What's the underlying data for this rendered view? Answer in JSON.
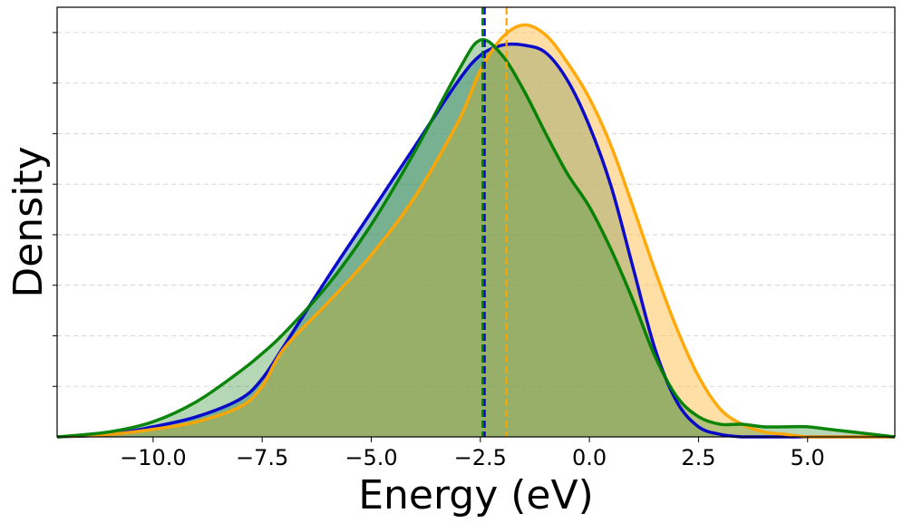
{
  "chart_data": {
    "type": "area",
    "title": "",
    "xlabel": "Energy (eV)",
    "ylabel": "Density",
    "xlim": [
      -12.2,
      7.0
    ],
    "ylim": [
      0,
      0.17
    ],
    "x_ticks": [
      -10.0,
      -7.5,
      -5.0,
      -2.5,
      0.0,
      2.5,
      5.0
    ],
    "x_tick_labels": [
      "−10.0",
      "−7.5",
      "−5.0",
      "−2.5",
      "0.0",
      "2.5",
      "5.0"
    ],
    "y_ticks": [
      0.02,
      0.04,
      0.06,
      0.08,
      0.1,
      0.12,
      0.14,
      0.16
    ],
    "grid": "horizontal dashed",
    "x": [
      -12.2,
      -11,
      -10,
      -9,
      -8,
      -7.5,
      -7,
      -6,
      -5,
      -4,
      -3,
      -2.5,
      -2,
      -1.5,
      -1,
      -0.5,
      0,
      0.5,
      1,
      1.5,
      2,
      2.5,
      3,
      3.5,
      4,
      4.5,
      5,
      5.5,
      6,
      7
    ],
    "series": [
      {
        "name": "blue",
        "color": "#0000cc",
        "fill": "#5f9ea0",
        "values": [
          0.0,
          0.001,
          0.004,
          0.008,
          0.015,
          0.023,
          0.036,
          0.063,
          0.089,
          0.115,
          0.141,
          0.151,
          0.155,
          0.155,
          0.152,
          0.141,
          0.123,
          0.099,
          0.067,
          0.035,
          0.014,
          0.004,
          0.001,
          0.0,
          0.0,
          0.0,
          0.0,
          0.0,
          0.0,
          0.0
        ],
        "mean": -2.4
      },
      {
        "name": "orange",
        "color": "#ffa500",
        "fill": "#ffc04c",
        "values": [
          0.0,
          0.001,
          0.003,
          0.006,
          0.012,
          0.02,
          0.035,
          0.053,
          0.072,
          0.095,
          0.125,
          0.145,
          0.158,
          0.163,
          0.159,
          0.148,
          0.134,
          0.115,
          0.091,
          0.066,
          0.043,
          0.024,
          0.011,
          0.005,
          0.002,
          0.001,
          0.0,
          0.0,
          0.0,
          0.0
        ],
        "mean": -1.9
      },
      {
        "name": "green",
        "color": "#008000",
        "fill": "#2e8b2e",
        "values": [
          0.0,
          0.002,
          0.006,
          0.014,
          0.026,
          0.033,
          0.041,
          0.06,
          0.084,
          0.113,
          0.145,
          0.157,
          0.151,
          0.137,
          0.12,
          0.104,
          0.091,
          0.074,
          0.054,
          0.032,
          0.016,
          0.008,
          0.005,
          0.005,
          0.004,
          0.004,
          0.004,
          0.003,
          0.002,
          0.0
        ],
        "mean": -2.45
      }
    ]
  }
}
